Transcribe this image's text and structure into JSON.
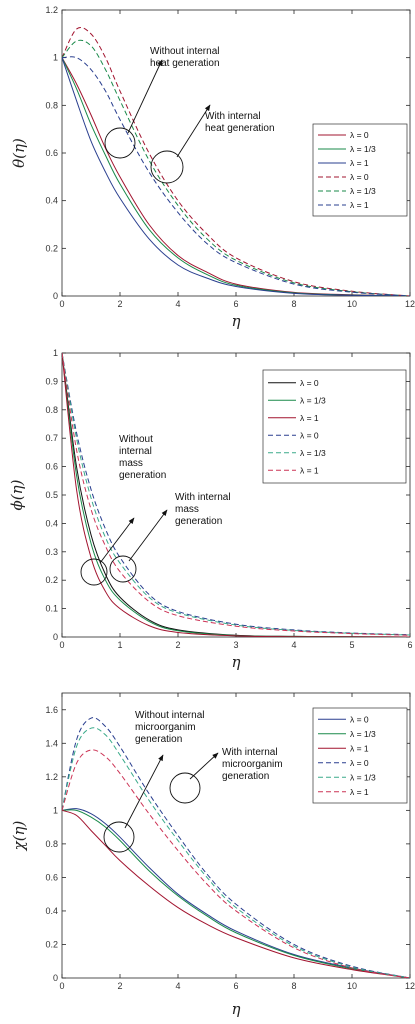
{
  "chart_data": [
    {
      "type": "line",
      "ylabel": "θ(η)",
      "xlabel": "η",
      "xlim": [
        0,
        12
      ],
      "ylim": [
        0,
        1.2
      ],
      "xticks": [
        0,
        2,
        4,
        6,
        8,
        10,
        12
      ],
      "yticks": [
        0,
        0.2,
        0.4,
        0.6,
        0.8,
        1,
        1.2
      ],
      "ytick_labels": [
        "0",
        "0.2",
        "0.4",
        "0.6",
        "0.8",
        "1",
        "1.2"
      ],
      "grid": false,
      "legend_position": "right",
      "annotations": [
        {
          "lines": [
            "Without internal",
            "heat generation"
          ]
        },
        {
          "lines": [
            "With internal",
            "heat generation"
          ]
        }
      ],
      "series": [
        {
          "name": "λ = 0",
          "color": "#a2142f",
          "dash": "solid",
          "x": [
            0,
            0.5,
            1,
            1.5,
            2,
            3,
            4,
            5,
            6,
            8,
            10,
            12
          ],
          "y": [
            1,
            0.89,
            0.76,
            0.62,
            0.5,
            0.3,
            0.17,
            0.1,
            0.05,
            0.015,
            0.005,
            0
          ]
        },
        {
          "name": "λ = 1/3",
          "color": "#1a8a4a",
          "dash": "solid",
          "x": [
            0,
            0.5,
            1,
            1.5,
            2,
            3,
            4,
            5,
            6,
            8,
            10,
            12
          ],
          "y": [
            1,
            0.87,
            0.72,
            0.59,
            0.47,
            0.28,
            0.16,
            0.09,
            0.045,
            0.013,
            0.004,
            0
          ]
        },
        {
          "name": "λ = 1",
          "color": "#2a3f8f",
          "dash": "solid",
          "x": [
            0,
            0.5,
            1,
            1.5,
            2,
            3,
            4,
            5,
            6,
            8,
            10,
            12
          ],
          "y": [
            1,
            0.82,
            0.65,
            0.52,
            0.41,
            0.24,
            0.13,
            0.075,
            0.04,
            0.011,
            0.003,
            0
          ]
        },
        {
          "name": "λ = 0",
          "color": "#a2142f",
          "dash": "dashed",
          "x": [
            0,
            0.5,
            1,
            1.5,
            2,
            3,
            4,
            5,
            6,
            8,
            10,
            12
          ],
          "y": [
            1,
            1.12,
            1.1,
            1.0,
            0.86,
            0.6,
            0.4,
            0.26,
            0.16,
            0.06,
            0.02,
            0
          ]
        },
        {
          "name": "λ = 1/3",
          "color": "#1a8a4a",
          "dash": "dashed",
          "x": [
            0,
            0.5,
            1,
            1.5,
            2,
            3,
            4,
            5,
            6,
            8,
            10,
            12
          ],
          "y": [
            1,
            1.07,
            1.05,
            0.95,
            0.82,
            0.57,
            0.38,
            0.24,
            0.15,
            0.055,
            0.018,
            0
          ]
        },
        {
          "name": "λ = 1",
          "color": "#2a3f8f",
          "dash": "dashed",
          "x": [
            0,
            0.5,
            1,
            1.5,
            2,
            3,
            4,
            5,
            6,
            8,
            10,
            12
          ],
          "y": [
            1,
            1.0,
            0.95,
            0.86,
            0.74,
            0.52,
            0.35,
            0.22,
            0.14,
            0.05,
            0.016,
            0
          ]
        }
      ]
    },
    {
      "type": "line",
      "ylabel": "ϕ(η)",
      "xlabel": "η",
      "xlim": [
        0,
        6
      ],
      "ylim": [
        0,
        1
      ],
      "xticks": [
        0,
        1,
        2,
        3,
        4,
        5,
        6
      ],
      "yticks": [
        0,
        0.1,
        0.2,
        0.3,
        0.4,
        0.5,
        0.6,
        0.7,
        0.8,
        0.9,
        1
      ],
      "ytick_labels": [
        "0",
        "0.1",
        "0.2",
        "0.3",
        "0.4",
        "0.5",
        "0.6",
        "0.7",
        "0.8",
        "0.9",
        "1"
      ],
      "grid": false,
      "legend_position": "top-right",
      "annotations": [
        {
          "lines": [
            "Without",
            "internal",
            "mass",
            "generation"
          ]
        },
        {
          "lines": [
            "With internal",
            "mass",
            "generation"
          ]
        }
      ],
      "series": [
        {
          "name": "λ = 0",
          "color": "#111111",
          "dash": "solid",
          "x": [
            0,
            0.25,
            0.5,
            0.75,
            1,
            1.5,
            2,
            3,
            4,
            5,
            6
          ],
          "y": [
            1,
            0.6,
            0.36,
            0.22,
            0.14,
            0.06,
            0.025,
            0.006,
            0.002,
            0.001,
            0
          ]
        },
        {
          "name": "λ = 1/3",
          "color": "#1a8a4a",
          "dash": "solid",
          "x": [
            0,
            0.25,
            0.5,
            0.75,
            1,
            1.5,
            2,
            3,
            4,
            5,
            6
          ],
          "y": [
            1,
            0.57,
            0.33,
            0.2,
            0.13,
            0.055,
            0.022,
            0.005,
            0.002,
            0.001,
            0
          ]
        },
        {
          "name": "λ = 1",
          "color": "#a2142f",
          "dash": "solid",
          "x": [
            0,
            0.25,
            0.5,
            0.75,
            1,
            1.5,
            2,
            3,
            4,
            5,
            6
          ],
          "y": [
            1,
            0.52,
            0.28,
            0.16,
            0.1,
            0.04,
            0.016,
            0.004,
            0.001,
            0.0005,
            0
          ]
        },
        {
          "name": "λ = 0",
          "color": "#2a3f8f",
          "dash": "dashed",
          "x": [
            0,
            0.25,
            0.5,
            0.75,
            1,
            1.5,
            2,
            3,
            4,
            5,
            6
          ],
          "y": [
            1,
            0.72,
            0.52,
            0.38,
            0.28,
            0.15,
            0.09,
            0.045,
            0.025,
            0.014,
            0.008
          ]
        },
        {
          "name": "λ = 1/3",
          "color": "#3aaa8a",
          "dash": "dashed",
          "x": [
            0,
            0.25,
            0.5,
            0.75,
            1,
            1.5,
            2,
            3,
            4,
            5,
            6
          ],
          "y": [
            1,
            0.7,
            0.49,
            0.35,
            0.26,
            0.14,
            0.085,
            0.042,
            0.023,
            0.013,
            0.007
          ]
        },
        {
          "name": "λ = 1",
          "color": "#cc3355",
          "dash": "dashed",
          "x": [
            0,
            0.25,
            0.5,
            0.75,
            1,
            1.5,
            2,
            3,
            4,
            5,
            6
          ],
          "y": [
            1,
            0.66,
            0.45,
            0.32,
            0.23,
            0.125,
            0.075,
            0.038,
            0.021,
            0.012,
            0.006
          ]
        }
      ]
    },
    {
      "type": "line",
      "ylabel": "χ(η)",
      "xlabel": "η",
      "xlim": [
        0,
        12
      ],
      "ylim": [
        0,
        1.7
      ],
      "xticks": [
        0,
        2,
        4,
        6,
        8,
        10,
        12
      ],
      "yticks": [
        0,
        0.2,
        0.4,
        0.6,
        0.8,
        1,
        1.2,
        1.4,
        1.6
      ],
      "ytick_labels": [
        "0",
        "0.2",
        "0.4",
        "0.6",
        "0.8",
        "1",
        "1.2",
        "1.4",
        "1.6"
      ],
      "grid": false,
      "legend_position": "top-right",
      "annotations": [
        {
          "lines": [
            "Without internal",
            "microorganim",
            "generation"
          ]
        },
        {
          "lines": [
            "With internal",
            "microorganim",
            "generation"
          ]
        }
      ],
      "series": [
        {
          "name": "λ = 0",
          "color": "#2a3f8f",
          "dash": "solid",
          "x": [
            0,
            0.5,
            1,
            1.5,
            2,
            3,
            4,
            5,
            6,
            8,
            10,
            12
          ],
          "y": [
            1,
            1.01,
            0.98,
            0.92,
            0.84,
            0.66,
            0.5,
            0.38,
            0.28,
            0.14,
            0.06,
            0
          ]
        },
        {
          "name": "λ = 1/3",
          "color": "#1a8a4a",
          "dash": "solid",
          "x": [
            0,
            0.5,
            1,
            1.5,
            2,
            3,
            4,
            5,
            6,
            8,
            10,
            12
          ],
          "y": [
            1,
            1.0,
            0.96,
            0.9,
            0.82,
            0.64,
            0.49,
            0.37,
            0.27,
            0.135,
            0.055,
            0
          ]
        },
        {
          "name": "λ = 1",
          "color": "#a2142f",
          "dash": "solid",
          "x": [
            0,
            0.5,
            1,
            1.5,
            2,
            3,
            4,
            5,
            6,
            8,
            10,
            12
          ],
          "y": [
            1,
            0.97,
            0.88,
            0.79,
            0.7,
            0.55,
            0.42,
            0.32,
            0.24,
            0.12,
            0.05,
            0
          ]
        },
        {
          "name": "λ = 0",
          "color": "#2a3f8f",
          "dash": "dashed",
          "x": [
            0,
            0.5,
            1,
            1.5,
            2,
            3,
            4,
            5,
            6,
            8,
            10,
            12
          ],
          "y": [
            1,
            1.42,
            1.55,
            1.5,
            1.38,
            1.1,
            0.85,
            0.62,
            0.44,
            0.2,
            0.07,
            0
          ]
        },
        {
          "name": "λ = 1/3",
          "color": "#3aaa8a",
          "dash": "dashed",
          "x": [
            0,
            0.5,
            1,
            1.5,
            2,
            3,
            4,
            5,
            6,
            8,
            10,
            12
          ],
          "y": [
            1,
            1.38,
            1.49,
            1.45,
            1.33,
            1.06,
            0.82,
            0.6,
            0.42,
            0.19,
            0.065,
            0
          ]
        },
        {
          "name": "λ = 1",
          "color": "#cc3355",
          "dash": "dashed",
          "x": [
            0,
            0.5,
            1,
            1.5,
            2,
            3,
            4,
            5,
            6,
            8,
            10,
            12
          ],
          "y": [
            1,
            1.28,
            1.36,
            1.32,
            1.22,
            0.98,
            0.76,
            0.56,
            0.4,
            0.18,
            0.06,
            0
          ]
        }
      ]
    }
  ]
}
